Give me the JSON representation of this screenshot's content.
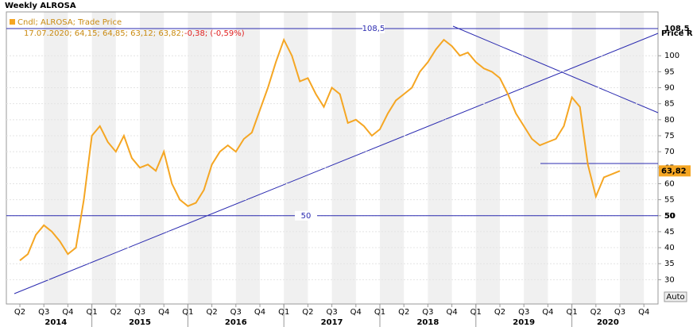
{
  "chart_data": {
    "type": "line",
    "title": "Weekly ALROSA",
    "legend": "Cndl; ALROSA; Trade Price",
    "info": "17.07.2020; 64,15; 64,85; 63,12; 63,82;",
    "change": "-0,38; (-0,59%)",
    "y_label": "Price RUB",
    "last_label": "63,82",
    "button": "Auto",
    "color": "#f5a623",
    "categories": [
      "Q2",
      null,
      null,
      "Q3",
      null,
      null,
      "Q4",
      null,
      null,
      "Q1",
      null,
      null,
      "Q2",
      null,
      null,
      "Q3",
      null,
      null,
      "Q4",
      null,
      null,
      "Q1",
      null,
      null,
      "Q2",
      null,
      null,
      "Q3",
      null,
      null,
      "Q4",
      null,
      null,
      "Q1",
      null,
      null,
      "Q2",
      null,
      null,
      "Q3",
      null,
      null,
      "Q4",
      null,
      null,
      "Q1",
      null,
      null,
      "Q2",
      null,
      null,
      "Q3",
      null,
      null,
      "Q4",
      null,
      null,
      "Q1",
      null,
      null,
      "Q2",
      null,
      null,
      "Q3",
      null,
      null,
      "Q4",
      null,
      null,
      "Q1",
      null,
      null,
      "Q2",
      null,
      null,
      "Q3",
      null,
      null,
      "Q4"
    ],
    "years": [
      "2014",
      "2015",
      "2016",
      "2017",
      "2018",
      "2019",
      "2020"
    ],
    "values": [
      36,
      38,
      44,
      47,
      45,
      42,
      38,
      40,
      55,
      75,
      78,
      73,
      70,
      75,
      68,
      65,
      66,
      64,
      70,
      60,
      55,
      53,
      54,
      58,
      66,
      70,
      72,
      70,
      74,
      76,
      83,
      90,
      98,
      105,
      100,
      92,
      93,
      88,
      84,
      90,
      88,
      79,
      80,
      78,
      75,
      77,
      82,
      86,
      88,
      90,
      95,
      98,
      102,
      105,
      103,
      100,
      101,
      98,
      96,
      95,
      93,
      88,
      82,
      78,
      74,
      72,
      73,
      74,
      78,
      87,
      84,
      66,
      56,
      62,
      63,
      64,
      null,
      null,
      null
    ],
    "hlines": [
      {
        "value": 108.5,
        "label": "108,5"
      },
      {
        "value": 50,
        "label": "50"
      }
    ],
    "ylim": [
      22.4,
      113.7
    ],
    "yticks": [
      30,
      35,
      40,
      45,
      50,
      55,
      60,
      65,
      70,
      75,
      80,
      85,
      90,
      95,
      100
    ],
    "grid": true
  }
}
